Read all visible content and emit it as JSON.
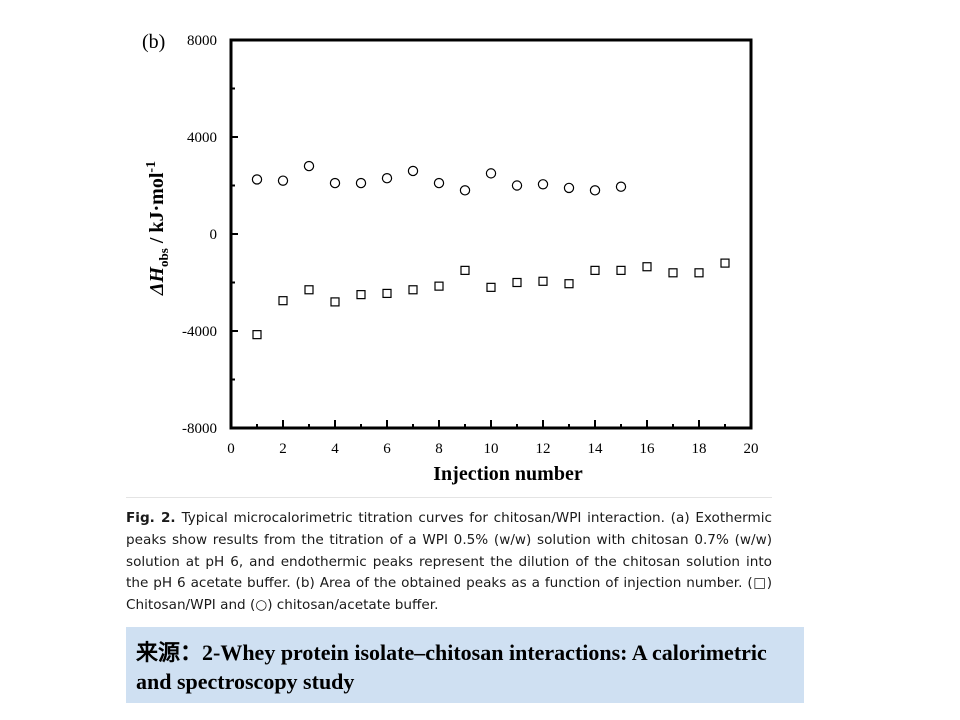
{
  "chart_data": {
    "type": "scatter",
    "panel_label": "(b)",
    "xlabel": "Injection number",
    "ylabel_parts": {
      "delta": "Δ",
      "H": "H",
      "sub": "obs",
      "unit": " / kJ·mol",
      "sup": "-1"
    },
    "xlim": [
      0,
      20
    ],
    "ylim": [
      -8000,
      8000
    ],
    "x_ticks": [
      0,
      2,
      4,
      6,
      8,
      10,
      12,
      14,
      16,
      18,
      20
    ],
    "y_ticks": [
      -8000,
      -4000,
      0,
      4000,
      8000
    ],
    "series": [
      {
        "marker": "square",
        "x": [
          1,
          2,
          3,
          4,
          5,
          6,
          7,
          8,
          9,
          10,
          11,
          12,
          13,
          14,
          15,
          16,
          17,
          18,
          19
        ],
        "y": [
          -4150,
          -2750,
          -2300,
          -2800,
          -2500,
          -2450,
          -2300,
          -2150,
          -1500,
          -2200,
          -2000,
          -1950,
          -2050,
          -1500,
          -1500,
          -1350,
          -1600,
          -1600,
          -1200
        ]
      },
      {
        "marker": "circle",
        "x": [
          1,
          2,
          3,
          4,
          5,
          6,
          7,
          8,
          9,
          10,
          11,
          12,
          13,
          14,
          15
        ],
        "y": [
          2250,
          2200,
          2800,
          2100,
          2100,
          2300,
          2600,
          2100,
          1800,
          2500,
          2000,
          2050,
          1900,
          1800,
          1950
        ]
      }
    ]
  },
  "caption": {
    "fig_label": "Fig. 2.",
    "text_before_square": "Typical microcalorimetric titration curves for chitosan/WPI interaction. (a) Exothermic peaks show results from the titration of a WPI 0.5% (w/w) solution with chitosan 0.7% (w/w) solution at pH 6, and endothermic peaks represent the dilution of the chitosan solution into the pH 6 acetate buffer. (b) Area of the obtained peaks as a function of injection number. (",
    "square_symbol": "□",
    "text_between": ") Chitosan/WPI and (",
    "circle_symbol": "○",
    "text_after": ") chitosan/acetate buffer."
  },
  "source": {
    "text": "来源：2-Whey protein isolate–chitosan interactions: A calorimetric and spectroscopy study"
  }
}
